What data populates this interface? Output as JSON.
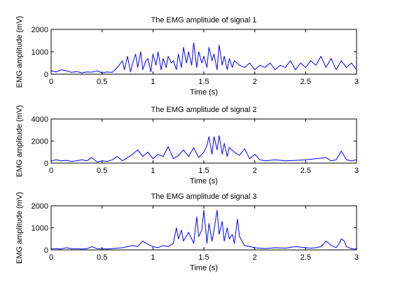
{
  "chart_data": [
    {
      "type": "line",
      "title": "The EMG amplitude of signal 1",
      "xlabel": "Time (s)",
      "ylabel": "EMG amplitude (mV)",
      "xlim": [
        0,
        3
      ],
      "ylim": [
        0,
        2000
      ],
      "xticks": [
        "0",
        "0.5",
        "1",
        "1.5",
        "2",
        "2.5",
        "3"
      ],
      "yticks": [
        "0",
        "1000",
        "2000"
      ],
      "grid": false,
      "color": "#0000ff",
      "series": [
        {
          "x": [
            0,
            0.05,
            0.1,
            0.15,
            0.2,
            0.25,
            0.3,
            0.35,
            0.4,
            0.45,
            0.5,
            0.55,
            0.6,
            0.65,
            0.7,
            0.72,
            0.75,
            0.78,
            0.8,
            0.83,
            0.85,
            0.88,
            0.9,
            0.93,
            0.95,
            0.98,
            1.0,
            1.03,
            1.05,
            1.08,
            1.1,
            1.13,
            1.15,
            1.18,
            1.2,
            1.23,
            1.25,
            1.28,
            1.3,
            1.33,
            1.35,
            1.38,
            1.4,
            1.43,
            1.45,
            1.48,
            1.5,
            1.53,
            1.55,
            1.58,
            1.6,
            1.63,
            1.65,
            1.68,
            1.7,
            1.73,
            1.75,
            1.78,
            1.8,
            1.85,
            1.9,
            1.95,
            2.0,
            2.05,
            2.1,
            2.15,
            2.2,
            2.25,
            2.3,
            2.35,
            2.4,
            2.45,
            2.5,
            2.55,
            2.6,
            2.65,
            2.7,
            2.75,
            2.8,
            2.85,
            2.9,
            2.95,
            3.0
          ],
          "y": [
            150,
            100,
            200,
            150,
            80,
            120,
            60,
            100,
            90,
            150,
            60,
            100,
            80,
            300,
            600,
            200,
            800,
            100,
            500,
            900,
            300,
            1000,
            200,
            600,
            700,
            100,
            900,
            400,
            1000,
            200,
            700,
            300,
            800,
            500,
            600,
            200,
            900,
            300,
            1200,
            500,
            1000,
            400,
            1400,
            300,
            1000,
            500,
            800,
            300,
            1200,
            600,
            900,
            200,
            1300,
            400,
            800,
            200,
            700,
            300,
            600,
            400,
            300,
            500,
            200,
            400,
            300,
            500,
            200,
            400,
            300,
            600,
            200,
            500,
            300,
            600,
            400,
            800,
            300,
            700,
            200,
            600,
            300,
            500,
            200
          ]
        }
      ]
    },
    {
      "type": "line",
      "title": "The EMG amplitude of signal 2",
      "xlabel": "Time (s)",
      "ylabel": "EMG amplitude (mV)",
      "xlim": [
        0,
        3
      ],
      "ylim": [
        0,
        4000
      ],
      "xticks": [
        "0",
        "0.5",
        "1",
        "1.5",
        "2",
        "2.5",
        "3"
      ],
      "yticks": [
        "0",
        "2000",
        "4000"
      ],
      "grid": false,
      "color": "#0000ff",
      "series": [
        {
          "x": [
            0,
            0.05,
            0.1,
            0.15,
            0.2,
            0.25,
            0.3,
            0.35,
            0.4,
            0.45,
            0.5,
            0.55,
            0.6,
            0.65,
            0.7,
            0.75,
            0.8,
            0.85,
            0.9,
            0.95,
            1.0,
            1.05,
            1.1,
            1.15,
            1.2,
            1.25,
            1.3,
            1.35,
            1.4,
            1.45,
            1.5,
            1.53,
            1.55,
            1.58,
            1.6,
            1.63,
            1.65,
            1.68,
            1.7,
            1.73,
            1.75,
            1.8,
            1.85,
            1.9,
            1.95,
            2.0,
            2.05,
            2.1,
            2.2,
            2.3,
            2.4,
            2.5,
            2.6,
            2.7,
            2.75,
            2.8,
            2.85,
            2.9,
            2.95,
            3.0
          ],
          "y": [
            200,
            300,
            200,
            250,
            150,
            200,
            300,
            200,
            500,
            100,
            200,
            150,
            300,
            600,
            200,
            500,
            800,
            1200,
            600,
            1000,
            400,
            800,
            600,
            1500,
            400,
            700,
            1200,
            600,
            1400,
            500,
            1000,
            1600,
            2400,
            800,
            2400,
            1200,
            2500,
            800,
            1800,
            600,
            1400,
            1000,
            700,
            1300,
            400,
            800,
            300,
            200,
            300,
            200,
            250,
            300,
            400,
            500,
            200,
            300,
            1100,
            300,
            200,
            300
          ]
        }
      ]
    },
    {
      "type": "line",
      "title": "The EMG amplitude of signal 3",
      "xlabel": "Time (s)",
      "ylabel": "EMG amplitude (mV)",
      "xlim": [
        0,
        3
      ],
      "ylim": [
        0,
        2000
      ],
      "xticks": [
        "0",
        "0.5",
        "1",
        "1.5",
        "2",
        "2.5",
        "3"
      ],
      "yticks": [
        "0",
        "1000",
        "2000"
      ],
      "grid": false,
      "color": "#0000ff",
      "series": [
        {
          "x": [
            0,
            0.05,
            0.1,
            0.15,
            0.2,
            0.25,
            0.3,
            0.35,
            0.4,
            0.45,
            0.5,
            0.55,
            0.6,
            0.65,
            0.7,
            0.75,
            0.8,
            0.85,
            0.9,
            0.95,
            1.0,
            1.05,
            1.1,
            1.15,
            1.2,
            1.23,
            1.25,
            1.28,
            1.3,
            1.35,
            1.4,
            1.43,
            1.45,
            1.48,
            1.5,
            1.53,
            1.55,
            1.58,
            1.6,
            1.63,
            1.65,
            1.68,
            1.7,
            1.73,
            1.75,
            1.78,
            1.8,
            1.83,
            1.85,
            1.9,
            1.95,
            2.0,
            2.05,
            2.1,
            2.2,
            2.3,
            2.4,
            2.5,
            2.55,
            2.6,
            2.65,
            2.7,
            2.75,
            2.8,
            2.83,
            2.85,
            2.88,
            2.9,
            2.95,
            3.0
          ],
          "y": [
            50,
            60,
            40,
            100,
            50,
            60,
            40,
            50,
            150,
            60,
            50,
            40,
            60,
            80,
            100,
            150,
            200,
            150,
            400,
            250,
            150,
            100,
            200,
            150,
            300,
            1000,
            500,
            900,
            400,
            800,
            300,
            1500,
            600,
            900,
            1800,
            300,
            1200,
            400,
            900,
            1800,
            700,
            1300,
            400,
            1000,
            500,
            700,
            300,
            1400,
            600,
            200,
            150,
            100,
            80,
            60,
            100,
            80,
            150,
            100,
            80,
            100,
            150,
            400,
            200,
            100,
            300,
            500,
            400,
            150,
            50,
            40
          ]
        }
      ]
    }
  ]
}
